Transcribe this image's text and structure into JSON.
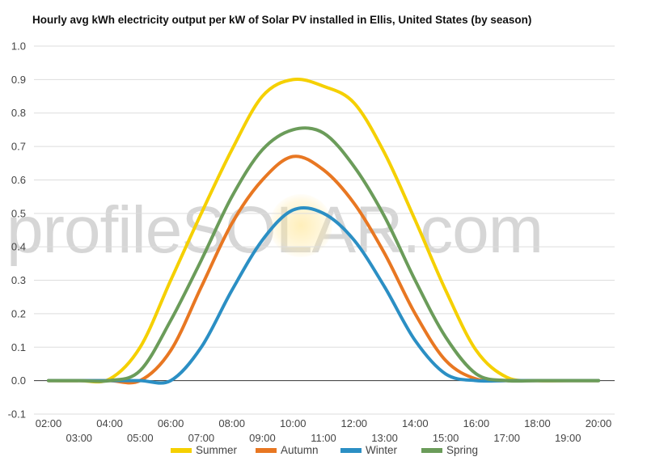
{
  "watermark": {
    "text": "profileSOLAR.com"
  },
  "chart_data": {
    "type": "line",
    "title": "Hourly avg kWh electricity output per kW of Solar PV installed in Ellis, United States (by season)",
    "xlabel": "",
    "ylabel": "",
    "ylim": [
      -0.1,
      1.0
    ],
    "y_ticks": [
      "-0.1",
      "0.0",
      "0.1",
      "0.2",
      "0.3",
      "0.4",
      "0.5",
      "0.6",
      "0.7",
      "0.8",
      "0.9",
      "1.0"
    ],
    "categories": [
      "02:00",
      "03:00",
      "04:00",
      "05:00",
      "06:00",
      "07:00",
      "08:00",
      "09:00",
      "10:00",
      "11:00",
      "12:00",
      "13:00",
      "14:00",
      "15:00",
      "16:00",
      "17:00",
      "18:00",
      "19:00",
      "20:00"
    ],
    "grid": true,
    "legend_position": "bottom",
    "series": [
      {
        "name": "Summer",
        "color": "#f5d000",
        "values": [
          0.0,
          0.0,
          0.005,
          0.1,
          0.3,
          0.5,
          0.69,
          0.85,
          0.9,
          0.88,
          0.83,
          0.68,
          0.48,
          0.27,
          0.09,
          0.01,
          0.0,
          0.0,
          0.0
        ]
      },
      {
        "name": "Autumn",
        "color": "#e87722",
        "values": [
          0.0,
          0.0,
          0.0,
          0.0,
          0.09,
          0.28,
          0.47,
          0.6,
          0.67,
          0.63,
          0.53,
          0.38,
          0.2,
          0.06,
          0.005,
          0.0,
          0.0,
          0.0,
          0.0
        ]
      },
      {
        "name": "Winter",
        "color": "#2b8fc4",
        "values": [
          0.0,
          0.0,
          0.0,
          0.0,
          0.0,
          0.1,
          0.27,
          0.42,
          0.51,
          0.5,
          0.42,
          0.28,
          0.12,
          0.02,
          0.0,
          0.0,
          0.0,
          0.0,
          0.0
        ]
      },
      {
        "name": "Spring",
        "color": "#6b9c5a",
        "values": [
          0.0,
          0.0,
          0.0,
          0.03,
          0.18,
          0.36,
          0.55,
          0.69,
          0.75,
          0.74,
          0.64,
          0.49,
          0.3,
          0.13,
          0.02,
          0.0,
          0.0,
          0.0,
          0.0
        ]
      }
    ]
  }
}
